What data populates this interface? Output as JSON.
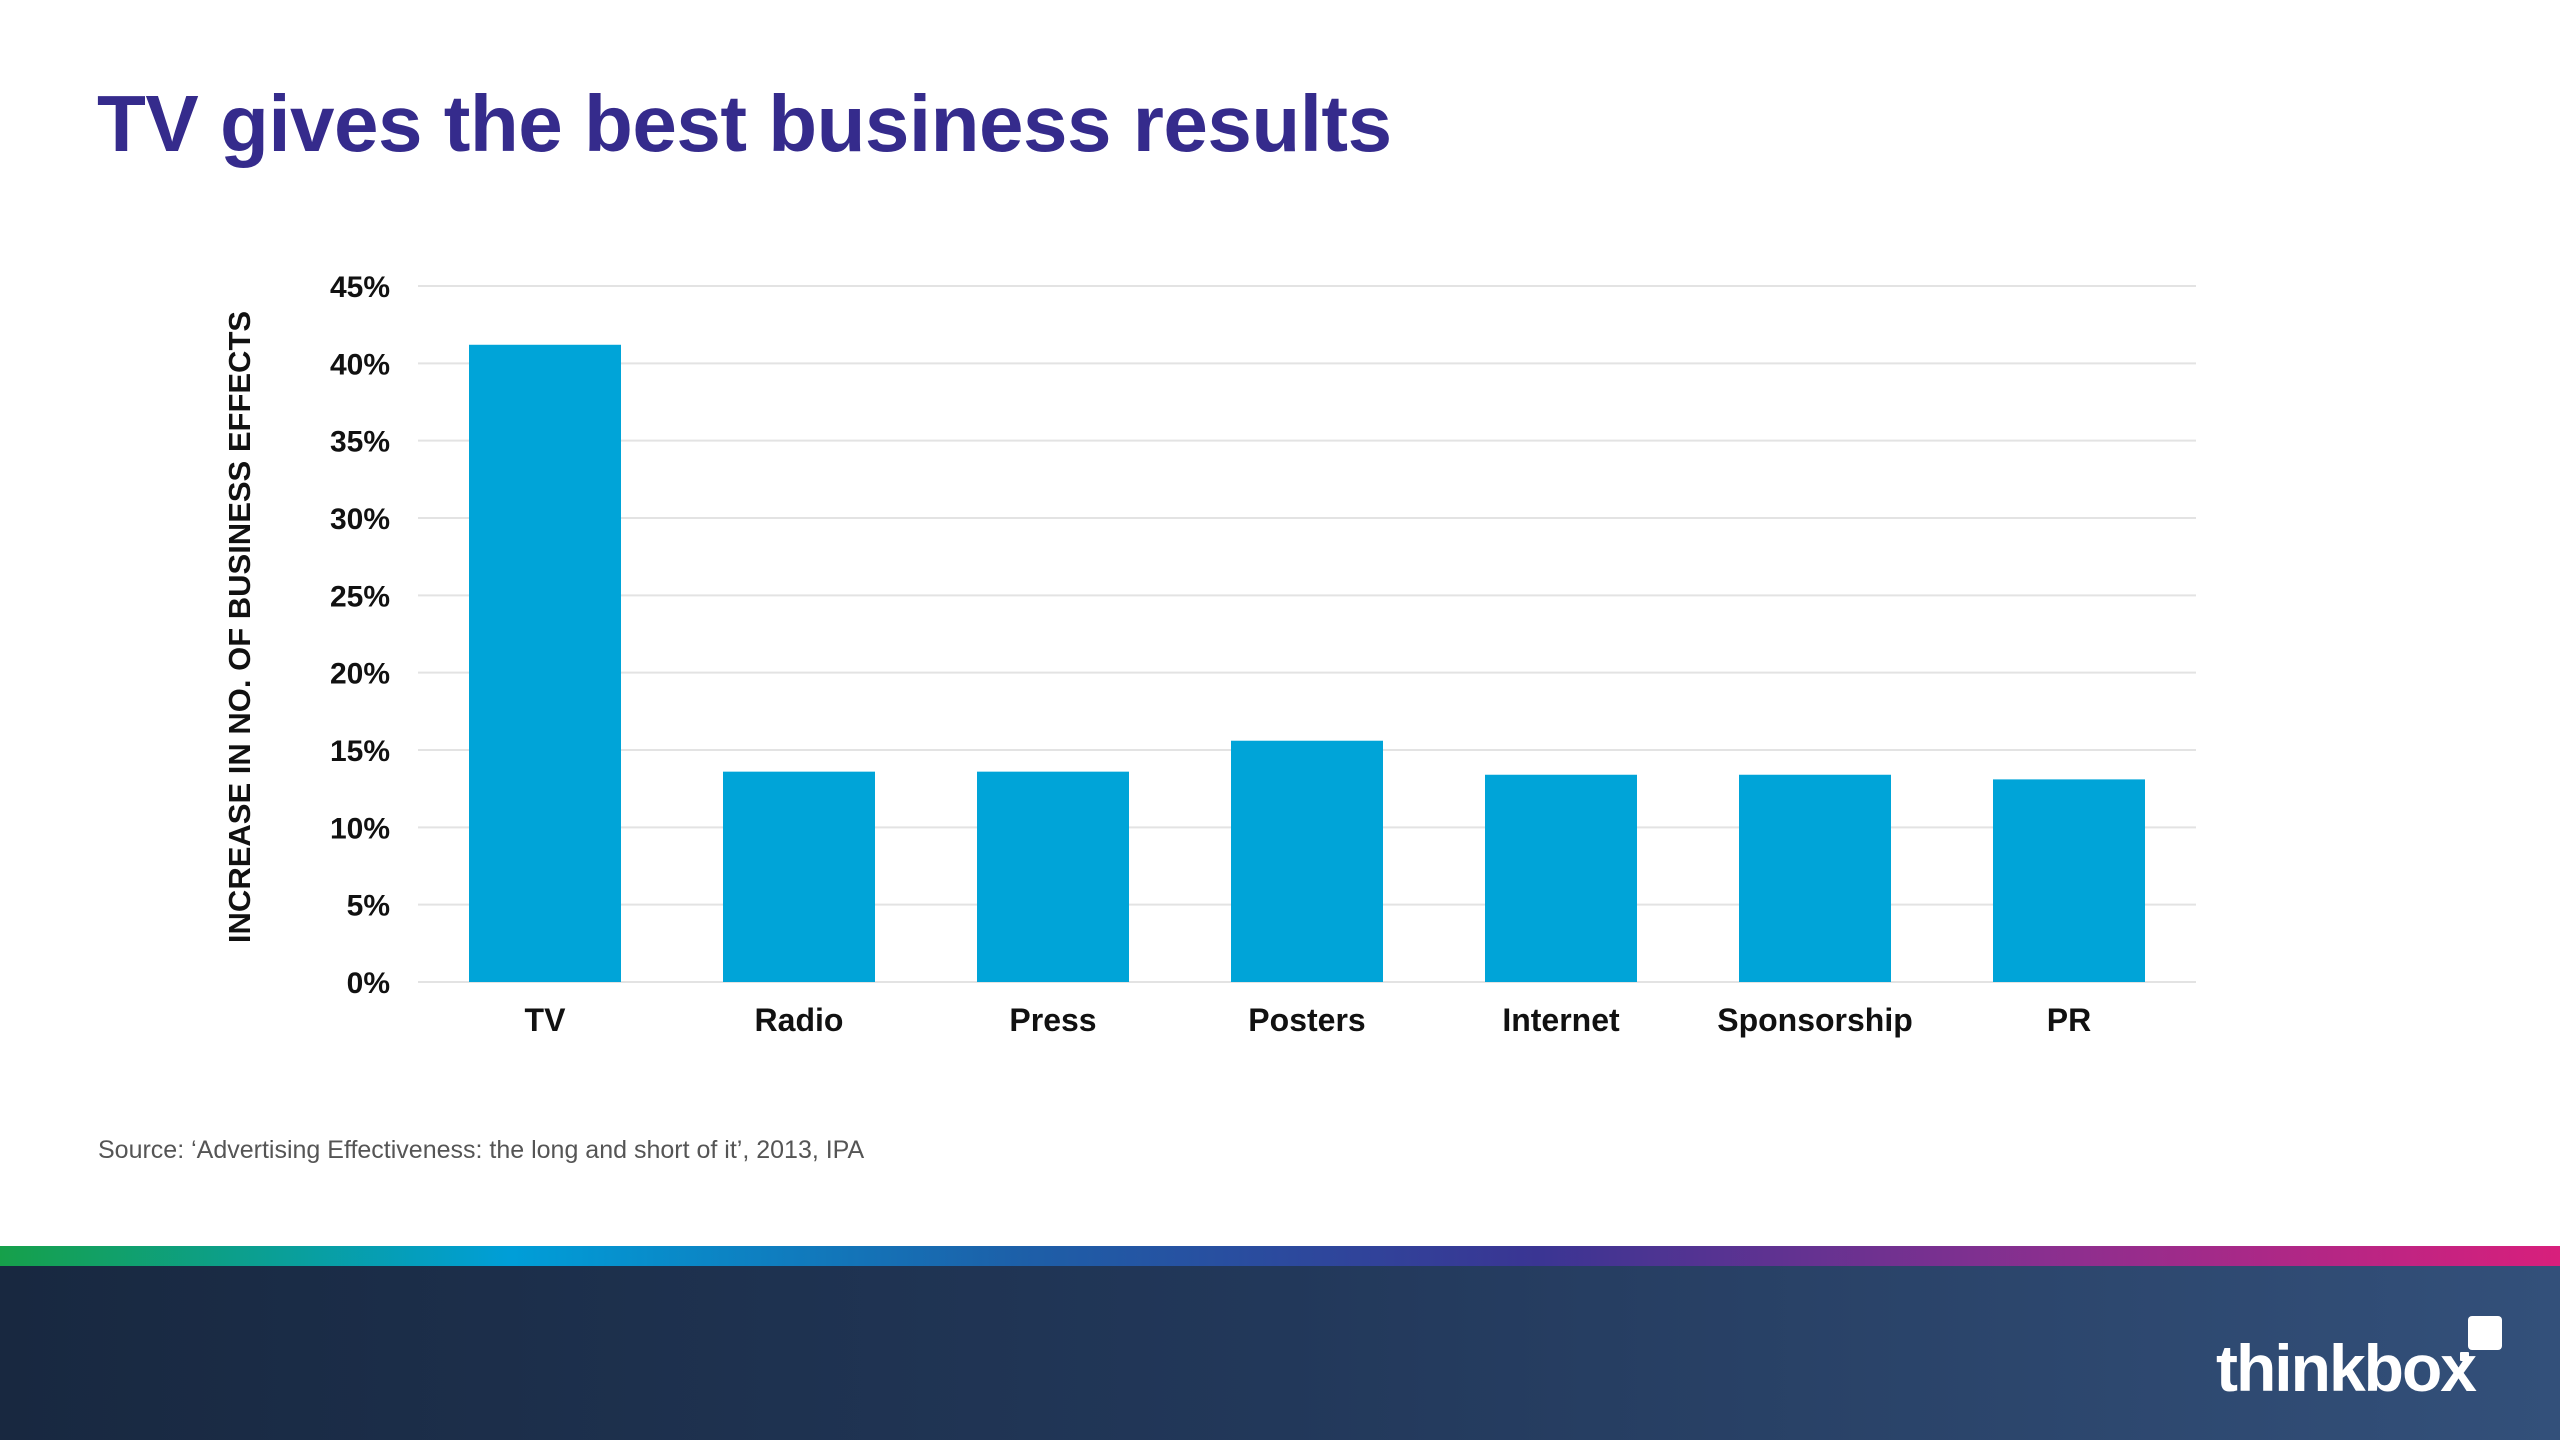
{
  "slide": {
    "title": "TV gives the best business results",
    "source": "Source: ‘Advertising Effectiveness: the long and short of it’, 2013, IPA"
  },
  "colors": {
    "title": "#352b8c",
    "bar": "#00a4d8",
    "grid": "#e3e3e3",
    "footer": "#1f3350",
    "strip": [
      "#16a04a",
      "#009ed8",
      "#1d5fa8",
      "#3a3593",
      "#8a2f8f",
      "#d81f7c"
    ]
  },
  "logo": {
    "text": "thinkbox"
  },
  "chart_data": {
    "type": "bar",
    "categories": [
      "TV",
      "Radio",
      "Press",
      "Posters",
      "Internet",
      "Sponsorship",
      "PR"
    ],
    "values": [
      41.2,
      13.6,
      13.6,
      15.6,
      13.4,
      13.4,
      13.1
    ],
    "title": "",
    "xlabel": "",
    "ylabel": "INCREASE IN NO. OF BUSINESS EFFECTS",
    "ylim": [
      0,
      45
    ],
    "yticks": [
      0,
      5,
      10,
      15,
      20,
      25,
      30,
      35,
      40,
      45
    ],
    "ytick_labels": [
      "0%",
      "5%",
      "10%",
      "15%",
      "20%",
      "25%",
      "30%",
      "35%",
      "40%",
      "45%"
    ],
    "grid": true,
    "legend": "none"
  }
}
